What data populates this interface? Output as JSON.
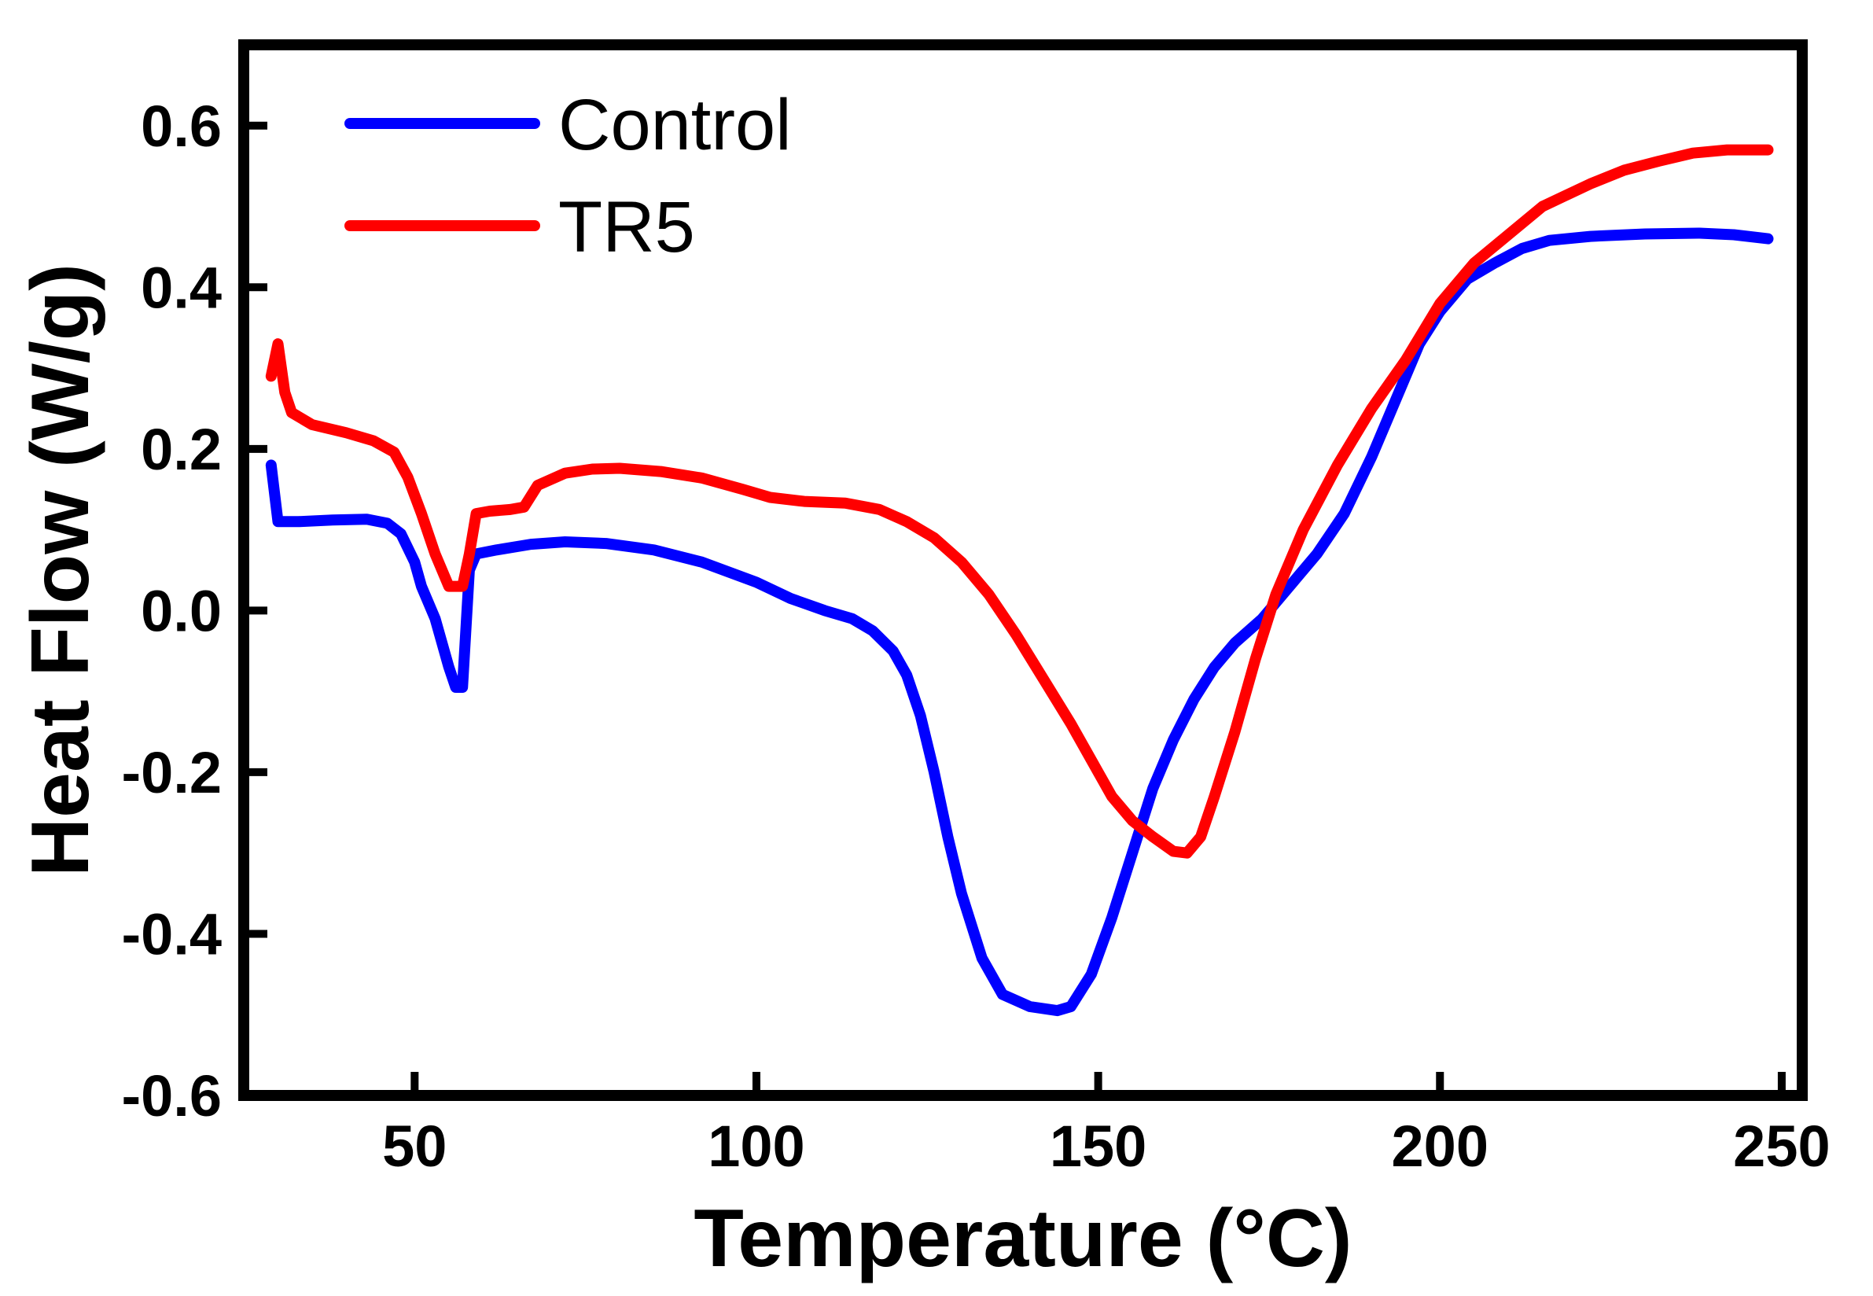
{
  "chart_data": {
    "type": "line",
    "title": "",
    "xlabel": "Temperature (°C)",
    "ylabel": "Heat Flow (W/g)",
    "xlim": [
      25,
      253
    ],
    "ylim": [
      -0.6,
      0.7
    ],
    "xticks": [
      {
        "value": 50,
        "label": "50"
      },
      {
        "value": 100,
        "label": "100"
      },
      {
        "value": 150,
        "label": "150"
      },
      {
        "value": 200,
        "label": "200"
      },
      {
        "value": 250,
        "label": "250"
      }
    ],
    "yticks": [
      {
        "value": 0.6,
        "label": "0.6"
      },
      {
        "value": 0.4,
        "label": "0.4"
      },
      {
        "value": 0.2,
        "label": "0.2"
      },
      {
        "value": 0.0,
        "label": "0.0"
      },
      {
        "value": -0.2,
        "label": "-0.2"
      },
      {
        "value": -0.4,
        "label": "-0.4"
      },
      {
        "value": -0.6,
        "label": "-0.6"
      }
    ],
    "grid": false,
    "legend": "top-left",
    "series": [
      {
        "name": "Control",
        "color": "#0000ff",
        "points": [
          [
            29,
            0.18
          ],
          [
            30,
            0.11
          ],
          [
            33,
            0.11
          ],
          [
            38,
            0.112
          ],
          [
            43,
            0.113
          ],
          [
            46,
            0.108
          ],
          [
            48,
            0.095
          ],
          [
            50,
            0.06
          ],
          [
            51,
            0.03
          ],
          [
            53,
            -0.01
          ],
          [
            55,
            -0.07
          ],
          [
            56,
            -0.095
          ],
          [
            57,
            -0.095
          ],
          [
            58,
            0.05
          ],
          [
            59,
            0.07
          ],
          [
            62,
            0.075
          ],
          [
            67,
            0.082
          ],
          [
            72,
            0.085
          ],
          [
            78,
            0.083
          ],
          [
            85,
            0.075
          ],
          [
            92,
            0.06
          ],
          [
            100,
            0.035
          ],
          [
            105,
            0.015
          ],
          [
            110,
            0.0
          ],
          [
            114,
            -0.01
          ],
          [
            117,
            -0.025
          ],
          [
            120,
            -0.05
          ],
          [
            122,
            -0.08
          ],
          [
            124,
            -0.13
          ],
          [
            126,
            -0.2
          ],
          [
            128,
            -0.28
          ],
          [
            130,
            -0.35
          ],
          [
            133,
            -0.43
          ],
          [
            136,
            -0.475
          ],
          [
            140,
            -0.49
          ],
          [
            144,
            -0.495
          ],
          [
            146,
            -0.49
          ],
          [
            149,
            -0.45
          ],
          [
            152,
            -0.38
          ],
          [
            155,
            -0.3
          ],
          [
            158,
            -0.22
          ],
          [
            161,
            -0.16
          ],
          [
            164,
            -0.11
          ],
          [
            167,
            -0.07
          ],
          [
            170,
            -0.04
          ],
          [
            174,
            -0.01
          ],
          [
            178,
            0.03
          ],
          [
            182,
            0.07
          ],
          [
            186,
            0.12
          ],
          [
            190,
            0.19
          ],
          [
            194,
            0.27
          ],
          [
            197,
            0.33
          ],
          [
            200,
            0.37
          ],
          [
            204,
            0.41
          ],
          [
            208,
            0.43
          ],
          [
            212,
            0.448
          ],
          [
            216,
            0.458
          ],
          [
            222,
            0.463
          ],
          [
            230,
            0.466
          ],
          [
            238,
            0.467
          ],
          [
            243,
            0.465
          ],
          [
            248,
            0.46
          ]
        ]
      },
      {
        "name": "TR5",
        "color": "#ff0000",
        "points": [
          [
            29,
            0.29
          ],
          [
            30,
            0.33
          ],
          [
            31,
            0.27
          ],
          [
            32,
            0.245
          ],
          [
            35,
            0.23
          ],
          [
            40,
            0.22
          ],
          [
            44,
            0.21
          ],
          [
            47,
            0.196
          ],
          [
            49,
            0.165
          ],
          [
            51,
            0.12
          ],
          [
            53,
            0.07
          ],
          [
            55,
            0.03
          ],
          [
            57,
            0.03
          ],
          [
            58,
            0.07
          ],
          [
            59,
            0.12
          ],
          [
            61,
            0.123
          ],
          [
            64,
            0.125
          ],
          [
            66,
            0.128
          ],
          [
            68,
            0.155
          ],
          [
            72,
            0.17
          ],
          [
            76,
            0.175
          ],
          [
            80,
            0.176
          ],
          [
            86,
            0.172
          ],
          [
            92,
            0.164
          ],
          [
            98,
            0.15
          ],
          [
            102,
            0.14
          ],
          [
            107,
            0.135
          ],
          [
            113,
            0.133
          ],
          [
            118,
            0.125
          ],
          [
            122,
            0.11
          ],
          [
            126,
            0.09
          ],
          [
            130,
            0.06
          ],
          [
            134,
            0.02
          ],
          [
            138,
            -0.03
          ],
          [
            142,
            -0.085
          ],
          [
            146,
            -0.14
          ],
          [
            150,
            -0.2
          ],
          [
            152,
            -0.23
          ],
          [
            155,
            -0.26
          ],
          [
            158,
            -0.28
          ],
          [
            161,
            -0.298
          ],
          [
            163,
            -0.3
          ],
          [
            165,
            -0.28
          ],
          [
            167,
            -0.23
          ],
          [
            170,
            -0.15
          ],
          [
            173,
            -0.06
          ],
          [
            176,
            0.02
          ],
          [
            180,
            0.1
          ],
          [
            185,
            0.18
          ],
          [
            190,
            0.25
          ],
          [
            195,
            0.31
          ],
          [
            200,
            0.38
          ],
          [
            205,
            0.43
          ],
          [
            210,
            0.465
          ],
          [
            215,
            0.5
          ],
          [
            218,
            0.512
          ],
          [
            222,
            0.528
          ],
          [
            227,
            0.545
          ],
          [
            232,
            0.556
          ],
          [
            237,
            0.566
          ],
          [
            242,
            0.57
          ],
          [
            248,
            0.57
          ]
        ]
      }
    ]
  }
}
